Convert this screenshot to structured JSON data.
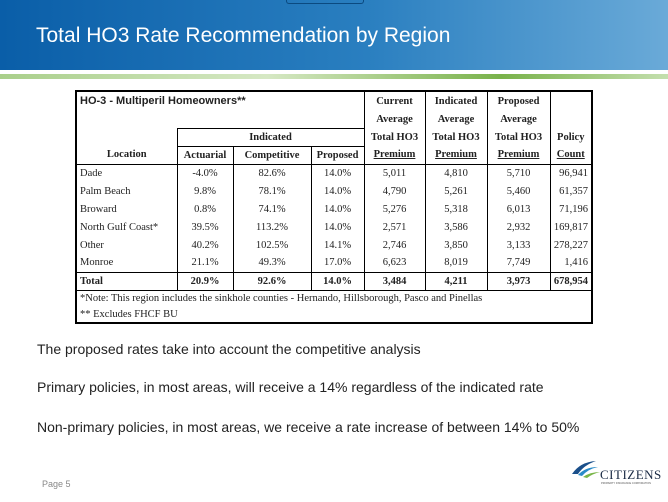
{
  "slide": {
    "title": "Total HO3 Rate Recommendation by Region",
    "page": "Page 5",
    "logo_text": "CITIZENS",
    "logo_sub": "PROPERTY INSURANCE CORPORATION"
  },
  "table": {
    "caption": "HO-3 - Multiperil Homeowners**",
    "headers": {
      "current": [
        "Current",
        "Average",
        "Total HO3",
        "Premium"
      ],
      "indicated_avg": [
        "Indicated",
        "Average",
        "Total HO3",
        "Premium"
      ],
      "proposed_avg": [
        "Proposed",
        "Average",
        "Total HO3",
        "Premium"
      ],
      "policy": [
        "Policy",
        "Count"
      ],
      "indicated_group": "Indicated",
      "location": "Location",
      "actuarial": "Actuarial",
      "competitive": "Competitive",
      "proposed": "Proposed"
    },
    "rows": [
      [
        "Dade",
        "-4.0%",
        "82.6%",
        "14.0%",
        "5,011",
        "4,810",
        "5,710",
        "96,941"
      ],
      [
        "Palm Beach",
        "9.8%",
        "78.1%",
        "14.0%",
        "4,790",
        "5,261",
        "5,460",
        "61,357"
      ],
      [
        "Broward",
        "0.8%",
        "74.1%",
        "14.0%",
        "5,276",
        "5,318",
        "6,013",
        "71,196"
      ],
      [
        "North Gulf Coast*",
        "39.5%",
        "113.2%",
        "14.0%",
        "2,571",
        "3,586",
        "2,932",
        "169,817"
      ],
      [
        "Other",
        "40.2%",
        "102.5%",
        "14.1%",
        "2,746",
        "3,850",
        "3,133",
        "278,227"
      ],
      [
        "Monroe",
        "21.1%",
        "49.3%",
        "17.0%",
        "6,623",
        "8,019",
        "7,749",
        "1,416"
      ]
    ],
    "total": [
      "Total",
      "20.9%",
      "92.6%",
      "14.0%",
      "3,484",
      "4,211",
      "3,973",
      "678,954"
    ],
    "notes": [
      "*Note: This region includes the sinkhole counties - Hernando, Hillsborough, Pasco and Pinellas",
      "** Excludes FHCF BU"
    ]
  },
  "bullets": [
    "The proposed rates take into account the competitive analysis",
    "Primary policies, in most areas, will receive a 14% regardless of the indicated rate",
    "Non-primary policies, in most areas, we receive a rate increase of between 14% to 50%"
  ]
}
